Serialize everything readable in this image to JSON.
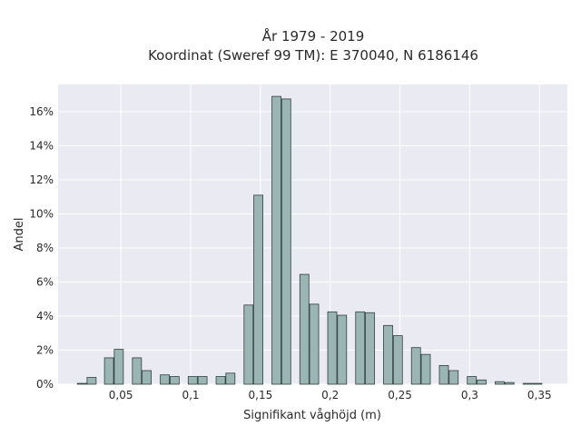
{
  "chart_data": {
    "type": "bar",
    "title_lines": [
      "År 1979 - 2019",
      "Koordinat (Sweref 99 TM): E 370040, N 6186146"
    ],
    "xlabel": "Signifikant våghöjd (m)",
    "ylabel": "Andel",
    "xlim": [
      0.005,
      0.37
    ],
    "ylim": [
      0,
      17.6
    ],
    "xticks": [
      0.05,
      0.1,
      0.15,
      0.2,
      0.25,
      0.3,
      0.35
    ],
    "xtick_labels": [
      "0,05",
      "0,1",
      "0,15",
      "0,2",
      "0,25",
      "0,3",
      "0,35"
    ],
    "yticks": [
      0,
      2,
      4,
      6,
      8,
      10,
      12,
      14,
      16
    ],
    "ytick_labels": [
      "0%",
      "2%",
      "4%",
      "6%",
      "8%",
      "10%",
      "12%",
      "14%",
      "16%"
    ],
    "bin_width": 0.0065,
    "x": [
      0.022,
      0.029,
      0.0415,
      0.0485,
      0.0615,
      0.0685,
      0.0815,
      0.0885,
      0.1015,
      0.1085,
      0.1215,
      0.1285,
      0.1415,
      0.1485,
      0.1615,
      0.1685,
      0.1815,
      0.1885,
      0.2015,
      0.2085,
      0.2215,
      0.2285,
      0.2415,
      0.2485,
      0.2615,
      0.2685,
      0.2815,
      0.2885,
      0.3015,
      0.3085,
      0.3215,
      0.3285,
      0.3415,
      0.3485
    ],
    "values": [
      0.05,
      0.4,
      1.55,
      2.05,
      1.55,
      0.8,
      0.55,
      0.45,
      0.45,
      0.45,
      0.45,
      0.65,
      4.65,
      11.1,
      16.9,
      16.75,
      6.45,
      4.7,
      4.25,
      4.05,
      4.25,
      4.2,
      3.45,
      2.85,
      2.15,
      1.75,
      1.1,
      0.8,
      0.45,
      0.25,
      0.15,
      0.1,
      0.05,
      0.05
    ],
    "grid": true,
    "colors": {
      "bar_fill": "#9bb5b5",
      "bar_edge": "#2f3f3f",
      "plot_bg": "#eaeaf2",
      "grid": "#ffffff"
    }
  }
}
